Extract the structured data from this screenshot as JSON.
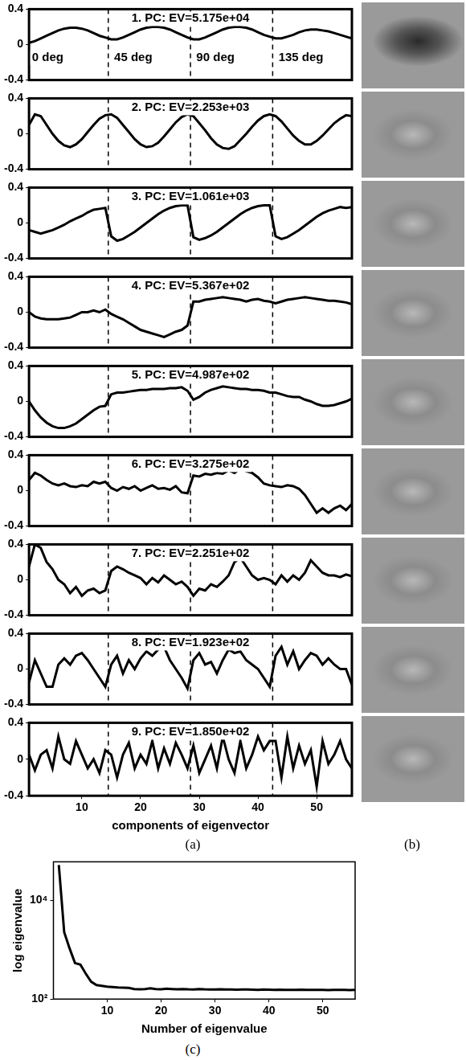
{
  "panel_labels": [
    "(a)",
    "(b)",
    "(c)"
  ],
  "chart_data": [
    {
      "type": "line",
      "title": "1. PC: EV=5.175e+04",
      "color": "#000000",
      "x": [
        1,
        2,
        3,
        4,
        5,
        6,
        7,
        8,
        9,
        10,
        11,
        12,
        13,
        14,
        15,
        16,
        17,
        18,
        19,
        20,
        21,
        22,
        23,
        24,
        25,
        26,
        27,
        28,
        29,
        30,
        31,
        32,
        33,
        34,
        35,
        36,
        37,
        38,
        39,
        40,
        41,
        42,
        43,
        44,
        45,
        46,
        47,
        48,
        49,
        50,
        51,
        52,
        53,
        54,
        55,
        56
      ],
      "values": [
        0.02,
        0.04,
        0.07,
        0.1,
        0.13,
        0.16,
        0.18,
        0.19,
        0.19,
        0.18,
        0.16,
        0.13,
        0.1,
        0.08,
        0.06,
        0.06,
        0.08,
        0.11,
        0.14,
        0.17,
        0.19,
        0.2,
        0.2,
        0.19,
        0.17,
        0.14,
        0.11,
        0.08,
        0.06,
        0.06,
        0.08,
        0.11,
        0.14,
        0.17,
        0.19,
        0.2,
        0.2,
        0.19,
        0.17,
        0.14,
        0.11,
        0.09,
        0.07,
        0.07,
        0.09,
        0.11,
        0.14,
        0.16,
        0.17,
        0.17,
        0.16,
        0.15,
        0.13,
        0.11,
        0.09,
        0.07
      ],
      "xlim": [
        1,
        56
      ],
      "ylim": [
        -0.4,
        0.4
      ],
      "yticks": [
        -0.4,
        0,
        0.4
      ],
      "vlines": [
        14.5,
        28.5,
        42.5
      ],
      "tick_labels": "y",
      "annotations": [
        {
          "text": "0 deg",
          "x": 1.5,
          "y": -0.15
        },
        {
          "text": "45 deg",
          "x": 15.5,
          "y": -0.15
        },
        {
          "text": "90 deg",
          "x": 29.5,
          "y": -0.15
        },
        {
          "text": "135 deg",
          "x": 43.5,
          "y": -0.15
        }
      ]
    },
    {
      "type": "line",
      "title": "2. PC: EV=2.253e+03",
      "color": "#000000",
      "x": [
        1,
        2,
        3,
        4,
        5,
        6,
        7,
        8,
        9,
        10,
        11,
        12,
        13,
        14,
        15,
        16,
        17,
        18,
        19,
        20,
        21,
        22,
        23,
        24,
        25,
        26,
        27,
        28,
        29,
        30,
        31,
        32,
        33,
        34,
        35,
        36,
        37,
        38,
        39,
        40,
        41,
        42,
        43,
        44,
        45,
        46,
        47,
        48,
        49,
        50,
        51,
        52,
        53,
        54,
        55,
        56
      ],
      "values": [
        0.1,
        0.22,
        0.2,
        0.1,
        0.0,
        -0.08,
        -0.13,
        -0.15,
        -0.12,
        -0.06,
        0.02,
        0.1,
        0.17,
        0.21,
        0.22,
        0.18,
        0.1,
        0.02,
        -0.06,
        -0.12,
        -0.15,
        -0.14,
        -0.1,
        -0.03,
        0.05,
        0.13,
        0.19,
        0.22,
        0.2,
        0.12,
        0.04,
        -0.05,
        -0.12,
        -0.16,
        -0.17,
        -0.14,
        -0.07,
        0.0,
        0.08,
        0.15,
        0.2,
        0.22,
        0.2,
        0.14,
        0.06,
        -0.02,
        -0.08,
        -0.12,
        -0.12,
        -0.08,
        -0.02,
        0.05,
        0.12,
        0.17,
        0.21,
        0.2
      ],
      "xlim": [
        1,
        56
      ],
      "ylim": [
        -0.4,
        0.4
      ],
      "yticks": [
        -0.4,
        0,
        0.4
      ],
      "vlines": [
        14.5,
        28.5,
        42.5
      ],
      "tick_labels": "y"
    },
    {
      "type": "line",
      "title": "3. PC: EV=1.061e+03",
      "color": "#000000",
      "x": [
        1,
        2,
        3,
        4,
        5,
        6,
        7,
        8,
        9,
        10,
        11,
        12,
        13,
        14,
        15,
        16,
        17,
        18,
        19,
        20,
        21,
        22,
        23,
        24,
        25,
        26,
        27,
        28,
        29,
        30,
        31,
        32,
        33,
        34,
        35,
        36,
        37,
        38,
        39,
        40,
        41,
        42,
        43,
        44,
        45,
        46,
        47,
        48,
        49,
        50,
        51,
        52,
        53,
        54,
        55,
        56
      ],
      "values": [
        -0.08,
        -0.1,
        -0.12,
        -0.1,
        -0.08,
        -0.05,
        -0.02,
        0.02,
        0.05,
        0.08,
        0.12,
        0.15,
        0.16,
        0.17,
        -0.15,
        -0.2,
        -0.18,
        -0.14,
        -0.1,
        -0.05,
        0.0,
        0.05,
        0.1,
        0.14,
        0.17,
        0.19,
        0.2,
        0.2,
        -0.16,
        -0.19,
        -0.17,
        -0.14,
        -0.1,
        -0.05,
        0.0,
        0.05,
        0.1,
        0.14,
        0.17,
        0.19,
        0.2,
        0.2,
        -0.15,
        -0.18,
        -0.16,
        -0.12,
        -0.08,
        -0.03,
        0.02,
        0.07,
        0.11,
        0.14,
        0.16,
        0.18,
        0.17,
        0.18
      ],
      "xlim": [
        1,
        56
      ],
      "ylim": [
        -0.4,
        0.4
      ],
      "yticks": [
        -0.4,
        0,
        0.4
      ],
      "vlines": [
        14.5,
        28.5,
        42.5
      ],
      "tick_labels": "y"
    },
    {
      "type": "line",
      "title": "4. PC: EV=5.367e+02",
      "color": "#000000",
      "x": [
        1,
        2,
        3,
        4,
        5,
        6,
        7,
        8,
        9,
        10,
        11,
        12,
        13,
        14,
        15,
        16,
        17,
        18,
        19,
        20,
        21,
        22,
        23,
        24,
        25,
        26,
        27,
        28,
        29,
        30,
        31,
        32,
        33,
        34,
        35,
        36,
        37,
        38,
        39,
        40,
        41,
        42,
        43,
        44,
        45,
        46,
        47,
        48,
        49,
        50,
        51,
        52,
        53,
        54,
        55,
        56
      ],
      "values": [
        0.0,
        -0.05,
        -0.07,
        -0.08,
        -0.08,
        -0.08,
        -0.07,
        -0.06,
        -0.03,
        0.0,
        0.0,
        0.02,
        0.0,
        0.03,
        -0.02,
        -0.05,
        -0.08,
        -0.12,
        -0.16,
        -0.2,
        -0.22,
        -0.24,
        -0.26,
        -0.28,
        -0.25,
        -0.22,
        -0.2,
        -0.15,
        0.12,
        0.12,
        0.14,
        0.15,
        0.16,
        0.17,
        0.16,
        0.15,
        0.14,
        0.12,
        0.14,
        0.15,
        0.13,
        0.12,
        0.1,
        0.12,
        0.14,
        0.15,
        0.16,
        0.17,
        0.16,
        0.15,
        0.14,
        0.13,
        0.13,
        0.12,
        0.11,
        0.09
      ],
      "xlim": [
        1,
        56
      ],
      "ylim": [
        -0.4,
        0.4
      ],
      "yticks": [
        -0.4,
        0,
        0.4
      ],
      "vlines": [
        14.5,
        28.5,
        42.5
      ],
      "tick_labels": "y"
    },
    {
      "type": "line",
      "title": "5. PC: EV=4.987e+02",
      "color": "#000000",
      "x": [
        1,
        2,
        3,
        4,
        5,
        6,
        7,
        8,
        9,
        10,
        11,
        12,
        13,
        14,
        15,
        16,
        17,
        18,
        19,
        20,
        21,
        22,
        23,
        24,
        25,
        26,
        27,
        28,
        29,
        30,
        31,
        32,
        33,
        34,
        35,
        36,
        37,
        38,
        39,
        40,
        41,
        42,
        43,
        44,
        45,
        46,
        47,
        48,
        49,
        50,
        51,
        52,
        53,
        54,
        55,
        56
      ],
      "values": [
        0.0,
        -0.1,
        -0.18,
        -0.24,
        -0.28,
        -0.3,
        -0.3,
        -0.28,
        -0.25,
        -0.2,
        -0.15,
        -0.1,
        -0.06,
        -0.05,
        0.08,
        0.1,
        0.1,
        0.11,
        0.12,
        0.13,
        0.13,
        0.14,
        0.14,
        0.14,
        0.15,
        0.15,
        0.16,
        0.12,
        0.02,
        0.05,
        0.1,
        0.13,
        0.15,
        0.17,
        0.16,
        0.15,
        0.14,
        0.14,
        0.13,
        0.13,
        0.12,
        0.1,
        0.1,
        0.08,
        0.06,
        0.05,
        0.05,
        0.02,
        0.0,
        -0.03,
        -0.05,
        -0.05,
        -0.04,
        -0.02,
        0.0,
        0.03
      ],
      "xlim": [
        1,
        56
      ],
      "ylim": [
        -0.4,
        0.4
      ],
      "yticks": [
        -0.4,
        0,
        0.4
      ],
      "vlines": [
        14.5,
        28.5,
        42.5
      ],
      "tick_labels": "y"
    },
    {
      "type": "line",
      "title": "6. PC: EV=3.275e+02",
      "color": "#000000",
      "x": [
        1,
        2,
        3,
        4,
        5,
        6,
        7,
        8,
        9,
        10,
        11,
        12,
        13,
        14,
        15,
        16,
        17,
        18,
        19,
        20,
        21,
        22,
        23,
        24,
        25,
        26,
        27,
        28,
        29,
        30,
        31,
        32,
        33,
        34,
        35,
        36,
        37,
        38,
        39,
        40,
        41,
        42,
        43,
        44,
        45,
        46,
        47,
        48,
        49,
        50,
        51,
        52,
        53,
        54,
        55,
        56
      ],
      "values": [
        0.12,
        0.2,
        0.17,
        0.12,
        0.08,
        0.06,
        0.08,
        0.05,
        0.04,
        0.06,
        0.05,
        0.1,
        0.08,
        0.1,
        0.03,
        0.0,
        0.04,
        0.02,
        0.05,
        0.0,
        0.03,
        0.06,
        0.02,
        0.03,
        0.01,
        0.05,
        -0.02,
        -0.03,
        0.17,
        0.16,
        0.19,
        0.18,
        0.2,
        0.19,
        0.23,
        0.2,
        0.25,
        0.22,
        0.2,
        0.15,
        0.08,
        0.06,
        0.05,
        0.04,
        0.06,
        0.05,
        0.02,
        -0.05,
        -0.15,
        -0.25,
        -0.2,
        -0.25,
        -0.2,
        -0.17,
        -0.22,
        -0.15
      ],
      "xlim": [
        1,
        56
      ],
      "ylim": [
        -0.4,
        0.4
      ],
      "yticks": [
        -0.4,
        0,
        0.4
      ],
      "vlines": [
        14.5,
        28.5,
        42.5
      ],
      "tick_labels": "y"
    },
    {
      "type": "line",
      "title": "7. PC: EV=2.251e+02",
      "color": "#000000",
      "x": [
        1,
        2,
        3,
        4,
        5,
        6,
        7,
        8,
        9,
        10,
        11,
        12,
        13,
        14,
        15,
        16,
        17,
        18,
        19,
        20,
        21,
        22,
        23,
        24,
        25,
        26,
        27,
        28,
        29,
        30,
        31,
        32,
        33,
        34,
        35,
        36,
        37,
        38,
        39,
        40,
        41,
        42,
        43,
        44,
        45,
        46,
        47,
        48,
        49,
        50,
        51,
        52,
        53,
        54,
        55,
        56
      ],
      "values": [
        0.15,
        0.4,
        0.36,
        0.2,
        0.12,
        0.0,
        -0.05,
        -0.15,
        -0.08,
        -0.18,
        -0.12,
        -0.1,
        -0.15,
        -0.12,
        0.1,
        0.15,
        0.12,
        0.08,
        0.05,
        0.02,
        -0.05,
        0.02,
        -0.03,
        0.05,
        0.0,
        -0.05,
        -0.02,
        -0.08,
        -0.18,
        -0.1,
        -0.12,
        -0.05,
        -0.08,
        -0.02,
        0.05,
        0.2,
        0.25,
        0.15,
        0.05,
        0.0,
        0.02,
        0.0,
        -0.05,
        0.05,
        -0.02,
        0.05,
        0.0,
        0.08,
        0.22,
        0.15,
        0.08,
        0.05,
        0.05,
        0.03,
        0.06,
        0.04
      ],
      "xlim": [
        1,
        56
      ],
      "ylim": [
        -0.4,
        0.4
      ],
      "yticks": [
        -0.4,
        0,
        0.4
      ],
      "vlines": [
        14.5,
        28.5,
        42.5
      ],
      "tick_labels": "y"
    },
    {
      "type": "line",
      "title": "8. PC: EV=1.923e+02",
      "color": "#000000",
      "x": [
        1,
        2,
        3,
        4,
        5,
        6,
        7,
        8,
        9,
        10,
        11,
        12,
        13,
        14,
        15,
        16,
        17,
        18,
        19,
        20,
        21,
        22,
        23,
        24,
        25,
        26,
        27,
        28,
        29,
        30,
        31,
        32,
        33,
        34,
        35,
        36,
        37,
        38,
        39,
        40,
        41,
        42,
        43,
        44,
        45,
        46,
        47,
        48,
        49,
        50,
        51,
        52,
        53,
        54,
        55,
        56
      ],
      "values": [
        -0.15,
        0.1,
        -0.05,
        -0.2,
        -0.2,
        0.05,
        0.12,
        0.05,
        0.15,
        0.18,
        0.1,
        0.0,
        -0.1,
        -0.2,
        0.05,
        0.15,
        -0.05,
        0.1,
        0.0,
        0.12,
        0.2,
        0.15,
        0.22,
        0.25,
        0.1,
        0.0,
        -0.1,
        -0.22,
        0.1,
        0.18,
        0.05,
        0.08,
        -0.05,
        0.1,
        0.22,
        0.18,
        0.2,
        0.1,
        0.05,
        0.0,
        -0.1,
        -0.2,
        0.15,
        0.25,
        0.05,
        0.2,
        0.0,
        0.1,
        0.18,
        0.15,
        0.05,
        0.12,
        0.05,
        0.0,
        0.0,
        -0.18
      ],
      "xlim": [
        1,
        56
      ],
      "ylim": [
        -0.4,
        0.4
      ],
      "yticks": [
        -0.4,
        0,
        0.4
      ],
      "vlines": [
        14.5,
        28.5,
        42.5
      ],
      "tick_labels": "y"
    },
    {
      "type": "line",
      "title": "9. PC: EV=1.850e+02",
      "color": "#000000",
      "x_label": "components of eigenvector",
      "x": [
        1,
        2,
        3,
        4,
        5,
        6,
        7,
        8,
        9,
        10,
        11,
        12,
        13,
        14,
        15,
        16,
        17,
        18,
        19,
        20,
        21,
        22,
        23,
        24,
        25,
        26,
        27,
        28,
        29,
        30,
        31,
        32,
        33,
        34,
        35,
        36,
        37,
        38,
        39,
        40,
        41,
        42,
        43,
        44,
        45,
        46,
        47,
        48,
        49,
        50,
        51,
        52,
        53,
        54,
        55,
        56
      ],
      "values": [
        0.05,
        -0.12,
        0.05,
        0.1,
        -0.1,
        0.25,
        0.0,
        -0.05,
        0.2,
        0.05,
        -0.1,
        0.0,
        -0.15,
        0.1,
        0.05,
        -0.2,
        0.05,
        0.18,
        -0.1,
        0.05,
        -0.05,
        0.2,
        -0.1,
        0.12,
        -0.05,
        0.18,
        0.05,
        -0.1,
        0.15,
        -0.15,
        0.0,
        0.15,
        -0.1,
        0.25,
        0.0,
        -0.15,
        0.2,
        -0.1,
        0.05,
        0.25,
        0.1,
        0.2,
        0.2,
        -0.2,
        0.25,
        -0.1,
        0.15,
        -0.05,
        0.1,
        -0.3,
        0.2,
        -0.05,
        0.05,
        0.2,
        0.0,
        -0.1
      ],
      "xlim": [
        1,
        56
      ],
      "ylim": [
        -0.4,
        0.4
      ],
      "xticks": [
        10,
        20,
        30,
        40,
        50
      ],
      "yticks": [
        -0.4,
        0,
        0.4
      ],
      "vlines": [
        14.5,
        28.5,
        42.5
      ]
    },
    {
      "type": "line",
      "color": "#000000",
      "x_label": "Number of eigenvalue",
      "y_label": "log eigenvalue",
      "log": "y",
      "x": [
        1,
        2,
        3,
        4,
        5,
        6,
        7,
        8,
        9,
        10,
        11,
        12,
        13,
        14,
        15,
        16,
        17,
        18,
        19,
        20,
        21,
        22,
        23,
        24,
        25,
        26,
        27,
        28,
        29,
        30,
        31,
        32,
        33,
        34,
        35,
        36,
        37,
        38,
        39,
        40,
        41,
        42,
        43,
        44,
        45,
        46,
        47,
        48,
        49,
        50,
        51,
        52,
        53,
        54,
        55,
        56
      ],
      "values": [
        51750,
        2253,
        1061,
        536.7,
        498.7,
        327.5,
        225.1,
        192.3,
        185,
        178,
        175,
        172,
        170,
        168,
        160,
        158,
        160,
        165,
        160,
        158,
        162,
        160,
        158,
        160,
        158,
        157,
        160,
        158,
        157,
        156,
        158,
        157,
        156,
        155,
        157,
        156,
        155,
        154,
        156,
        155,
        154,
        155,
        154,
        153,
        154,
        155,
        154,
        153,
        154,
        153,
        152,
        153,
        154,
        153,
        152,
        153
      ],
      "xlim": [
        0,
        56
      ],
      "ylim": [
        100,
        60000
      ],
      "xticks": [
        10,
        20,
        30,
        40,
        50
      ],
      "yticks": [
        {
          "value": 100,
          "label": "10²"
        },
        {
          "value": 10000,
          "label": "10⁴"
        }
      ]
    }
  ]
}
